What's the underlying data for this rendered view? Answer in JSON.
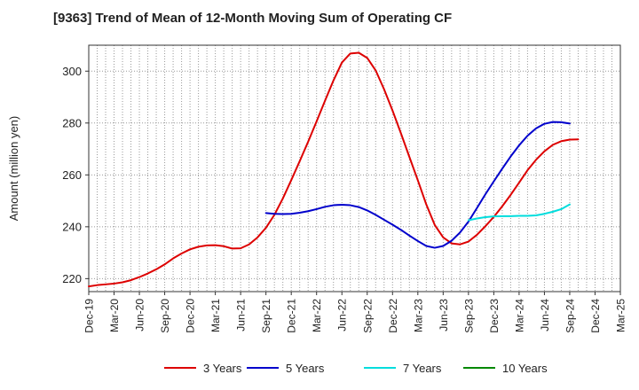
{
  "chart_data": {
    "type": "line",
    "title": "[9363]  Trend of Mean of 12-Month Moving Sum of Operating CF",
    "xlabel": "",
    "ylabel": "Amount (million yen)",
    "ylim": [
      215,
      310
    ],
    "yticks": [
      220,
      240,
      260,
      280,
      300
    ],
    "grid": true,
    "legend_position": "bottom",
    "x_tick_labels": [
      "Dec-19",
      "Mar-20",
      "Jun-20",
      "Sep-20",
      "Dec-20",
      "Mar-21",
      "Jun-21",
      "Sep-21",
      "Dec-21",
      "Mar-22",
      "Jun-22",
      "Sep-22",
      "Dec-22",
      "Mar-23",
      "Jun-23",
      "Sep-23",
      "Dec-23",
      "Mar-24",
      "Jun-24",
      "Sep-24",
      "Dec-24",
      "Mar-25"
    ],
    "x_tick_months": [
      0,
      3,
      6,
      9,
      12,
      15,
      18,
      21,
      24,
      27,
      30,
      33,
      36,
      39,
      42,
      45,
      48,
      51,
      54,
      57,
      60,
      63
    ],
    "x_range_months": [
      0,
      63
    ],
    "series": [
      {
        "name": "3 Years",
        "color": "#dd0000",
        "start_month": 0,
        "values": [
          217.0,
          217.5,
          217.8,
          218.1,
          218.6,
          219.4,
          220.6,
          222.0,
          223.6,
          225.5,
          227.8,
          229.7,
          231.3,
          232.3,
          232.8,
          232.9,
          232.5,
          231.6,
          231.7,
          233.2,
          235.9,
          239.6,
          244.6,
          250.9,
          258.0,
          265.3,
          272.8,
          280.6,
          288.6,
          296.4,
          303.3,
          306.8,
          307.1,
          305.1,
          300.3,
          293.0,
          284.8,
          276.0,
          266.9,
          257.9,
          248.6,
          240.7,
          235.9,
          233.6,
          233.2,
          234.3,
          236.9,
          240.2,
          243.8,
          247.9,
          252.3,
          257.0,
          261.8,
          265.8,
          269.1,
          271.6,
          273.0,
          273.6,
          273.7
        ]
      },
      {
        "name": "5 Years",
        "color": "#0000cc",
        "start_month": 21,
        "values": [
          245.3,
          245.0,
          244.9,
          245.0,
          245.4,
          246.0,
          246.8,
          247.7,
          248.3,
          248.5,
          248.3,
          247.6,
          246.3,
          244.6,
          242.7,
          240.8,
          238.8,
          236.6,
          234.5,
          232.6,
          231.9,
          232.6,
          234.6,
          237.8,
          242.0,
          247.2,
          252.5,
          257.5,
          262.4,
          267.1,
          271.4,
          275.1,
          277.9,
          279.7,
          280.4,
          280.3,
          279.8
        ]
      },
      {
        "name": "7 Years",
        "color": "#00dddd",
        "start_month": 45,
        "values": [
          242.5,
          243.2,
          243.7,
          244.0,
          244.1,
          244.1,
          244.2,
          244.2,
          244.4,
          245.0,
          245.8,
          246.8,
          248.6
        ]
      },
      {
        "name": "10 Years",
        "color": "#008800",
        "start_month": 45,
        "values": []
      }
    ]
  }
}
